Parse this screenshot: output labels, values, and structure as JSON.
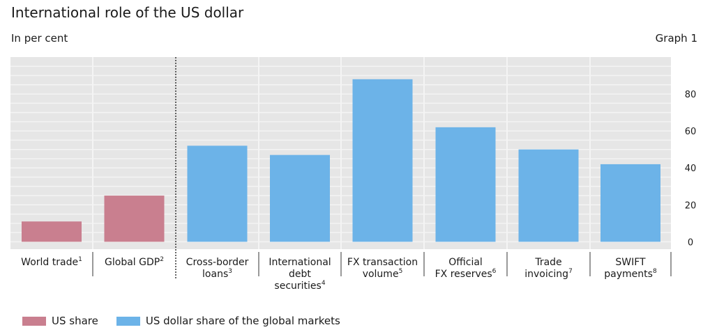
{
  "header": {
    "title": "International role of the US dollar",
    "unit": "In per cent",
    "graph_label": "Graph 1"
  },
  "legend": [
    {
      "label": "US share",
      "color": "#c97f8f"
    },
    {
      "label": "US dollar share of the global markets",
      "color": "#6cb3e8"
    }
  ],
  "chart_data": {
    "type": "bar",
    "categories": [
      {
        "lines": [
          "World trade"
        ],
        "note": "1",
        "value": 11,
        "series": 0
      },
      {
        "lines": [
          "Global GDP"
        ],
        "note": "2",
        "value": 25,
        "series": 0
      },
      {
        "lines": [
          "Cross-border",
          "loans"
        ],
        "note": "3",
        "value": 52,
        "series": 1
      },
      {
        "lines": [
          "International",
          "debt",
          "securities"
        ],
        "note": "4",
        "value": 47,
        "series": 1
      },
      {
        "lines": [
          "FX transaction",
          "volume"
        ],
        "note": "5",
        "value": 88,
        "series": 1
      },
      {
        "lines": [
          "Official",
          "FX reserves"
        ],
        "note": "6",
        "value": 62,
        "series": 1
      },
      {
        "lines": [
          "Trade",
          "invoicing"
        ],
        "note": "7",
        "value": 50,
        "series": 1
      },
      {
        "lines": [
          "SWIFT",
          "payments"
        ],
        "note": "8",
        "value": 42,
        "series": 1
      }
    ],
    "series": [
      {
        "name": "US share",
        "color": "#c97f8f"
      },
      {
        "name": "US dollar share of the global markets",
        "color": "#6cb3e8"
      }
    ],
    "y_ticks": [
      0,
      20,
      40,
      60,
      80
    ],
    "ylim": [
      -4,
      100
    ],
    "grid": true,
    "divider_after_index": 1,
    "legend_position": "bottom-left"
  }
}
